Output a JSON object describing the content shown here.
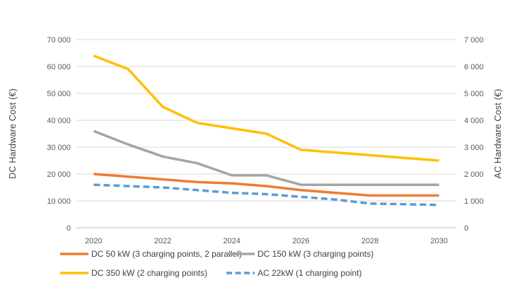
{
  "chart_data": {
    "type": "line",
    "title": "",
    "x": [
      2020,
      2021,
      2022,
      2023,
      2024,
      2025,
      2026,
      2027,
      2028,
      2029,
      2030
    ],
    "x_tick_labels": [
      "2020",
      "2022",
      "2024",
      "2026",
      "2028",
      "2030"
    ],
    "x_tick_indices": [
      0,
      2,
      4,
      6,
      8,
      10
    ],
    "left_axis": {
      "label": "DC Hardware Cost (€)",
      "min": 0,
      "max": 70000,
      "step": 10000,
      "tick_labels": [
        "0",
        "10 000",
        "20 000",
        "30 000",
        "40 000",
        "50 000",
        "60 000",
        "70 000"
      ],
      "label_color": "#404040"
    },
    "right_axis": {
      "label": "AC Hardware Cost (€)",
      "min": 0,
      "max": 7000,
      "step": 1000,
      "tick_labels": [
        "0",
        "1 000",
        "2 000",
        "3 000",
        "4 000",
        "5 000",
        "6 000",
        "7 000"
      ],
      "label_color": "#4472C4"
    },
    "grid": true,
    "legend_position": "bottom",
    "series": [
      {
        "name": "DC 50 kW (3 charging points, 2 parallel)",
        "axis": "left",
        "color": "#ED7D31",
        "style": "solid",
        "values": [
          20000,
          19000,
          18000,
          17000,
          16500,
          15500,
          14000,
          13000,
          12000,
          12000,
          12000
        ]
      },
      {
        "name": "DC 150 kW (3 charging points)",
        "axis": "left",
        "color": "#A5A5A5",
        "style": "solid",
        "values": [
          36000,
          31000,
          26500,
          24000,
          19500,
          19500,
          16000,
          16000,
          16000,
          16000,
          16000
        ]
      },
      {
        "name": "DC 350 kW (2 charging points)",
        "axis": "left",
        "color": "#FFC000",
        "style": "solid",
        "values": [
          64000,
          59000,
          45000,
          39000,
          37000,
          35000,
          29000,
          28000,
          27000,
          26000,
          25000
        ]
      },
      {
        "name": "AC 22kW (1 charging point)",
        "axis": "right",
        "color": "#5B9BD5",
        "style": "dashed",
        "values": [
          1600,
          1550,
          1500,
          1400,
          1300,
          1250,
          1150,
          1050,
          900,
          875,
          850
        ]
      }
    ],
    "colors": {
      "gridline": "#D9D9D9",
      "axis_line": "#BFBFBF",
      "tick_text": "#595959",
      "legend_text": "#404040"
    }
  }
}
